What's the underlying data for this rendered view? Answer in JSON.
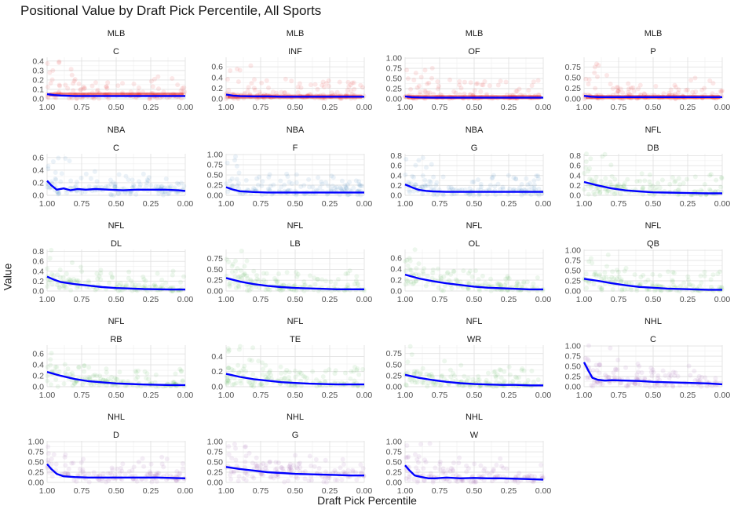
{
  "chart_data": {
    "type": "scatter",
    "title": "Positional Value by Draft Pick Percentile, All Sports",
    "xlabel": "Draft Pick Percentile",
    "ylabel": "Value",
    "x_reversed": true,
    "xlim": [
      1.0,
      0.0
    ],
    "x_ticks": [
      "1.00",
      "0.75",
      "0.50",
      "0.25",
      "0.00"
    ],
    "grid": true,
    "legend": "none",
    "sport_colors": {
      "MLB": "#e41a1c",
      "NBA": "#377eb8",
      "NFL": "#4daf4a",
      "NHL": "#984ea3"
    },
    "trend_color": "#0000ff",
    "panels": [
      {
        "league": "MLB",
        "position": "C",
        "ylim": [
          0,
          0.44
        ],
        "y_ticks": [
          "0.0",
          "0.1",
          "0.2",
          "0.3",
          "0.4"
        ],
        "smooth": {
          "x": [
            1.0,
            0.95,
            0.9,
            0.8,
            0.7,
            0.6,
            0.5,
            0.4,
            0.3,
            0.2,
            0.1,
            0.0
          ],
          "y": [
            0.05,
            0.04,
            0.035,
            0.03,
            0.03,
            0.03,
            0.03,
            0.03,
            0.03,
            0.03,
            0.03,
            0.03
          ]
        }
      },
      {
        "league": "MLB",
        "position": "INF",
        "ylim": [
          0,
          0.78
        ],
        "y_ticks": [
          "0.0",
          "0.2",
          "0.4",
          "0.6"
        ],
        "smooth": {
          "x": [
            1.0,
            0.95,
            0.9,
            0.8,
            0.7,
            0.6,
            0.5,
            0.4,
            0.3,
            0.2,
            0.1,
            0.0
          ],
          "y": [
            0.08,
            0.06,
            0.05,
            0.045,
            0.045,
            0.04,
            0.04,
            0.04,
            0.04,
            0.04,
            0.04,
            0.04
          ]
        }
      },
      {
        "league": "MLB",
        "position": "OF",
        "ylim": [
          0,
          1.02
        ],
        "y_ticks": [
          "0.00",
          "0.25",
          "0.50",
          "0.75",
          "1.00"
        ],
        "smooth": {
          "x": [
            1.0,
            0.95,
            0.9,
            0.8,
            0.7,
            0.6,
            0.5,
            0.4,
            0.3,
            0.2,
            0.1,
            0.0
          ],
          "y": [
            0.06,
            0.04,
            0.035,
            0.03,
            0.03,
            0.03,
            0.03,
            0.03,
            0.03,
            0.03,
            0.03,
            0.03
          ]
        }
      },
      {
        "league": "MLB",
        "position": "P",
        "ylim": [
          0,
          0.98
        ],
        "y_ticks": [
          "0.00",
          "0.25",
          "0.50",
          "0.75"
        ],
        "smooth": {
          "x": [
            1.0,
            0.95,
            0.9,
            0.8,
            0.7,
            0.6,
            0.5,
            0.4,
            0.3,
            0.2,
            0.1,
            0.0
          ],
          "y": [
            0.07,
            0.05,
            0.04,
            0.04,
            0.04,
            0.04,
            0.04,
            0.04,
            0.04,
            0.04,
            0.04,
            0.04
          ]
        }
      },
      {
        "league": "NBA",
        "position": "C",
        "ylim": [
          0,
          0.66
        ],
        "y_ticks": [
          "0.0",
          "0.2",
          "0.4",
          "0.6"
        ],
        "smooth": {
          "x": [
            1.0,
            0.97,
            0.93,
            0.88,
            0.83,
            0.78,
            0.72,
            0.65,
            0.55,
            0.45,
            0.35,
            0.25,
            0.15,
            0.05,
            0.0
          ],
          "y": [
            0.23,
            0.16,
            0.09,
            0.11,
            0.08,
            0.1,
            0.09,
            0.1,
            0.09,
            0.08,
            0.09,
            0.09,
            0.09,
            0.08,
            0.07
          ]
        }
      },
      {
        "league": "NBA",
        "position": "F",
        "ylim": [
          0,
          1.02
        ],
        "y_ticks": [
          "0.00",
          "0.25",
          "0.50",
          "0.75",
          "1.00"
        ],
        "smooth": {
          "x": [
            1.0,
            0.95,
            0.9,
            0.8,
            0.7,
            0.6,
            0.5,
            0.4,
            0.3,
            0.2,
            0.1,
            0.0
          ],
          "y": [
            0.2,
            0.14,
            0.1,
            0.08,
            0.07,
            0.07,
            0.07,
            0.07,
            0.07,
            0.07,
            0.07,
            0.07
          ]
        }
      },
      {
        "league": "NBA",
        "position": "G",
        "ylim": [
          0,
          0.84
        ],
        "y_ticks": [
          "0.0",
          "0.2",
          "0.4",
          "0.6",
          "0.8"
        ],
        "smooth": {
          "x": [
            1.0,
            0.95,
            0.9,
            0.85,
            0.8,
            0.7,
            0.6,
            0.5,
            0.4,
            0.3,
            0.2,
            0.1,
            0.0
          ],
          "y": [
            0.22,
            0.16,
            0.11,
            0.09,
            0.08,
            0.07,
            0.07,
            0.07,
            0.07,
            0.07,
            0.07,
            0.07,
            0.07
          ]
        }
      },
      {
        "league": "NFL",
        "position": "DB",
        "ylim": [
          0,
          0.84
        ],
        "y_ticks": [
          "0.0",
          "0.2",
          "0.4",
          "0.6",
          "0.8"
        ],
        "smooth": {
          "x": [
            1.0,
            0.9,
            0.8,
            0.7,
            0.6,
            0.5,
            0.4,
            0.3,
            0.2,
            0.1,
            0.0
          ],
          "y": [
            0.27,
            0.2,
            0.14,
            0.1,
            0.08,
            0.06,
            0.055,
            0.05,
            0.045,
            0.04,
            0.04
          ]
        }
      },
      {
        "league": "NFL",
        "position": "DL",
        "ylim": [
          0,
          0.84
        ],
        "y_ticks": [
          "0.0",
          "0.2",
          "0.4",
          "0.6",
          "0.8"
        ],
        "smooth": {
          "x": [
            1.0,
            0.95,
            0.9,
            0.8,
            0.7,
            0.6,
            0.5,
            0.4,
            0.3,
            0.2,
            0.1,
            0.0
          ],
          "y": [
            0.29,
            0.23,
            0.18,
            0.14,
            0.11,
            0.08,
            0.06,
            0.05,
            0.04,
            0.035,
            0.03,
            0.03
          ]
        }
      },
      {
        "league": "NFL",
        "position": "LB",
        "ylim": [
          0,
          0.96
        ],
        "y_ticks": [
          "0.00",
          "0.25",
          "0.50",
          "0.75"
        ],
        "smooth": {
          "x": [
            1.0,
            0.9,
            0.8,
            0.7,
            0.6,
            0.5,
            0.4,
            0.3,
            0.2,
            0.1,
            0.0
          ],
          "y": [
            0.3,
            0.22,
            0.16,
            0.12,
            0.09,
            0.07,
            0.06,
            0.05,
            0.04,
            0.04,
            0.04
          ]
        }
      },
      {
        "league": "NFL",
        "position": "OL",
        "ylim": [
          0,
          0.76
        ],
        "y_ticks": [
          "0.0",
          "0.2",
          "0.4",
          "0.6"
        ],
        "smooth": {
          "x": [
            1.0,
            0.9,
            0.8,
            0.7,
            0.6,
            0.5,
            0.4,
            0.3,
            0.2,
            0.1,
            0.0
          ],
          "y": [
            0.3,
            0.23,
            0.18,
            0.14,
            0.11,
            0.08,
            0.06,
            0.05,
            0.04,
            0.03,
            0.03
          ]
        }
      },
      {
        "league": "NFL",
        "position": "QB",
        "ylim": [
          0,
          1.02
        ],
        "y_ticks": [
          "0.00",
          "0.25",
          "0.50",
          "0.75",
          "1.00"
        ],
        "smooth": {
          "x": [
            1.0,
            0.9,
            0.8,
            0.7,
            0.6,
            0.5,
            0.4,
            0.3,
            0.2,
            0.1,
            0.0
          ],
          "y": [
            0.3,
            0.25,
            0.19,
            0.14,
            0.1,
            0.08,
            0.06,
            0.05,
            0.04,
            0.03,
            0.03
          ]
        }
      },
      {
        "league": "NFL",
        "position": "RB",
        "ylim": [
          0,
          0.76
        ],
        "y_ticks": [
          "0.0",
          "0.2",
          "0.4",
          "0.6"
        ],
        "smooth": {
          "x": [
            1.0,
            0.9,
            0.8,
            0.7,
            0.6,
            0.5,
            0.4,
            0.3,
            0.2,
            0.1,
            0.0
          ],
          "y": [
            0.27,
            0.2,
            0.14,
            0.1,
            0.08,
            0.06,
            0.05,
            0.04,
            0.035,
            0.03,
            0.03
          ]
        }
      },
      {
        "league": "NFL",
        "position": "TE",
        "ylim": [
          0,
          0.55
        ],
        "y_ticks": [
          "0.0",
          "0.2",
          "0.4"
        ],
        "smooth": {
          "x": [
            1.0,
            0.9,
            0.8,
            0.7,
            0.6,
            0.5,
            0.4,
            0.3,
            0.2,
            0.1,
            0.0
          ],
          "y": [
            0.17,
            0.13,
            0.1,
            0.08,
            0.06,
            0.05,
            0.04,
            0.035,
            0.03,
            0.03,
            0.03
          ]
        }
      },
      {
        "league": "NFL",
        "position": "WR",
        "ylim": [
          0,
          0.94
        ],
        "y_ticks": [
          "0.00",
          "0.25",
          "0.50",
          "0.75"
        ],
        "smooth": {
          "x": [
            1.0,
            0.9,
            0.8,
            0.7,
            0.6,
            0.5,
            0.4,
            0.3,
            0.2,
            0.1,
            0.0
          ],
          "y": [
            0.27,
            0.2,
            0.15,
            0.11,
            0.08,
            0.06,
            0.05,
            0.04,
            0.04,
            0.03,
            0.03
          ]
        }
      },
      {
        "league": "NHL",
        "position": "C",
        "ylim": [
          0,
          1.02
        ],
        "y_ticks": [
          "0.00",
          "0.25",
          "0.50",
          "0.75",
          "1.00"
        ],
        "smooth": {
          "x": [
            1.0,
            0.97,
            0.94,
            0.9,
            0.85,
            0.8,
            0.7,
            0.6,
            0.5,
            0.4,
            0.3,
            0.2,
            0.1,
            0.0
          ],
          "y": [
            0.6,
            0.4,
            0.22,
            0.17,
            0.15,
            0.16,
            0.15,
            0.14,
            0.12,
            0.11,
            0.1,
            0.09,
            0.08,
            0.06
          ]
        }
      },
      {
        "league": "NHL",
        "position": "D",
        "ylim": [
          0,
          1.02
        ],
        "y_ticks": [
          "0.00",
          "0.25",
          "0.50",
          "0.75",
          "1.00"
        ],
        "smooth": {
          "x": [
            1.0,
            0.97,
            0.93,
            0.88,
            0.8,
            0.7,
            0.6,
            0.5,
            0.4,
            0.3,
            0.2,
            0.1,
            0.0
          ],
          "y": [
            0.45,
            0.33,
            0.21,
            0.15,
            0.13,
            0.12,
            0.12,
            0.12,
            0.12,
            0.12,
            0.12,
            0.11,
            0.1
          ]
        }
      },
      {
        "league": "NHL",
        "position": "G",
        "ylim": [
          0,
          1.02
        ],
        "y_ticks": [
          "0.00",
          "0.25",
          "0.50",
          "0.75",
          "1.00"
        ],
        "smooth": {
          "x": [
            1.0,
            0.9,
            0.8,
            0.7,
            0.6,
            0.5,
            0.4,
            0.3,
            0.2,
            0.1,
            0.0
          ],
          "y": [
            0.38,
            0.33,
            0.29,
            0.25,
            0.23,
            0.21,
            0.2,
            0.19,
            0.18,
            0.17,
            0.17
          ]
        }
      },
      {
        "league": "NHL",
        "position": "W",
        "ylim": [
          0,
          1.02
        ],
        "y_ticks": [
          "0.00",
          "0.25",
          "0.50",
          "0.75",
          "1.00"
        ],
        "smooth": {
          "x": [
            1.0,
            0.97,
            0.93,
            0.88,
            0.83,
            0.78,
            0.7,
            0.6,
            0.5,
            0.4,
            0.3,
            0.2,
            0.1,
            0.0
          ],
          "y": [
            0.42,
            0.3,
            0.17,
            0.13,
            0.1,
            0.1,
            0.12,
            0.1,
            0.11,
            0.1,
            0.1,
            0.09,
            0.08,
            0.07
          ]
        }
      }
    ]
  }
}
